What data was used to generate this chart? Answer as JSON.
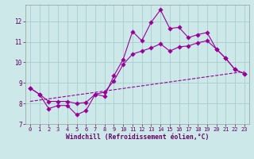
{
  "xlabel": "Windchill (Refroidissement éolien,°C)",
  "bg_color": "#cce8e8",
  "grid_color": "#aacccc",
  "line_color": "#990099",
  "xlim": [
    -0.5,
    23.5
  ],
  "ylim": [
    7.0,
    12.8
  ],
  "xticks": [
    0,
    1,
    2,
    3,
    4,
    5,
    6,
    7,
    8,
    9,
    10,
    11,
    12,
    13,
    14,
    15,
    16,
    17,
    18,
    19,
    20,
    21,
    22,
    23
  ],
  "yticks": [
    7,
    8,
    9,
    10,
    11,
    12
  ],
  "series1_x": [
    0,
    1,
    2,
    3,
    4,
    5,
    6,
    7,
    8,
    9,
    10,
    11,
    12,
    13,
    14,
    15,
    16,
    17,
    18,
    19,
    20,
    21,
    22,
    23
  ],
  "series1_y": [
    8.75,
    8.45,
    7.75,
    7.9,
    7.9,
    7.45,
    7.65,
    8.45,
    8.35,
    9.35,
    10.15,
    11.5,
    11.05,
    11.95,
    12.55,
    11.65,
    11.7,
    11.2,
    11.35,
    11.45,
    10.65,
    10.2,
    9.65,
    9.45
  ],
  "series2_x": [
    0,
    1,
    2,
    3,
    4,
    5,
    6,
    7,
    8,
    9,
    10,
    11,
    12,
    13,
    14,
    15,
    16,
    17,
    18,
    19,
    20,
    21,
    22,
    23
  ],
  "series2_y": [
    8.75,
    8.45,
    8.1,
    8.1,
    8.1,
    8.0,
    8.05,
    8.45,
    8.55,
    9.1,
    9.9,
    10.4,
    10.55,
    10.7,
    10.9,
    10.55,
    10.75,
    10.8,
    10.95,
    11.05,
    10.65,
    10.2,
    9.65,
    9.45
  ],
  "trend_x": [
    0,
    23
  ],
  "trend_y": [
    8.1,
    9.55
  ],
  "xlabel_color": "#660066",
  "tick_color": "#660066"
}
